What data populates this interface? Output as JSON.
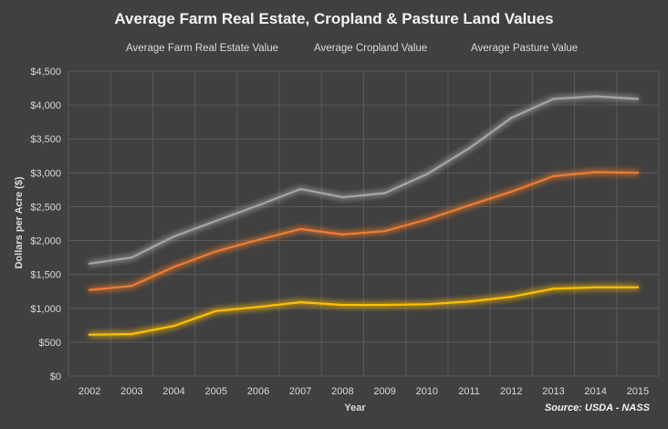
{
  "chart_data": {
    "type": "line",
    "title": "Average Farm Real Estate, Cropland & Pasture Land Values",
    "xlabel": "Year",
    "ylabel": "Dollars per Acre ($)",
    "source": "Source: USDA - NASS",
    "categories": [
      "2002",
      "2003",
      "2004",
      "2005",
      "2006",
      "2007",
      "2008",
      "2009",
      "2010",
      "2011",
      "2012",
      "2013",
      "2014",
      "2015"
    ],
    "ylim": [
      0,
      4500
    ],
    "yticks": [
      0,
      500,
      1000,
      1500,
      2000,
      2500,
      3000,
      3500,
      4000,
      4500
    ],
    "ytick_labels": [
      "$0",
      "$500",
      "$1,000",
      "$1,500",
      "$2,000",
      "$2,500",
      "$3,000",
      "$3,500",
      "$4,000",
      "$4,500"
    ],
    "grid": true,
    "legend_position": "top",
    "series": [
      {
        "name": "Average Farm Real Estate Value",
        "color": "#ed7d31",
        "values": [
          1270,
          1330,
          1610,
          1840,
          2010,
          2170,
          2090,
          2140,
          2310,
          2520,
          2720,
          2950,
          3010,
          3000
        ]
      },
      {
        "name": "Average Cropland Value",
        "color": "#a5a5a5",
        "values": [
          1660,
          1750,
          2060,
          2290,
          2520,
          2760,
          2640,
          2700,
          2980,
          3360,
          3810,
          4090,
          4130,
          4090
        ]
      },
      {
        "name": "Average Pasture Value",
        "color": "#ffc000",
        "values": [
          610,
          620,
          740,
          960,
          1020,
          1090,
          1050,
          1050,
          1060,
          1100,
          1170,
          1290,
          1310,
          1310
        ]
      }
    ]
  }
}
